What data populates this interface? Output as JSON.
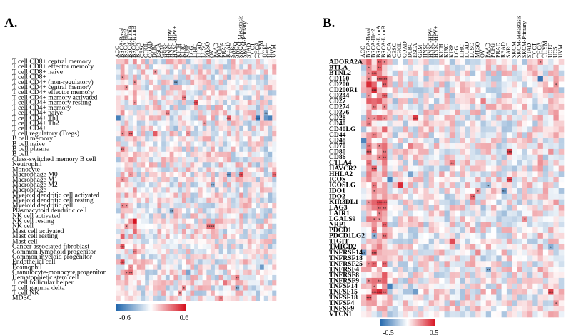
{
  "panels": [
    {
      "letter": "A.",
      "columns": [
        "ACC",
        "BRCA-Basal",
        "BRCA-Her2",
        "BRCA-LumA",
        "BRCA-LumB",
        "BLCA",
        "CESC",
        "CHOL",
        "COAD",
        "DLBC",
        "ESCA",
        "GBM",
        "HNSC",
        "HNSC-HPV-",
        "HNSC-HPV+",
        "KICH",
        "KIRC",
        "KIRP",
        "LGG",
        "LIHC",
        "LUAD",
        "LUSC",
        "MESO",
        "OV",
        "PAAD",
        "PCPG",
        "PRAD",
        "READ",
        "SARC",
        "SKCM",
        "SKCM-Metastasis",
        "SKCM-Primary",
        "STAD",
        "TGCT",
        "THCA",
        "THYM",
        "UCEC",
        "UCS",
        "UVM"
      ],
      "rows": [
        "T cell CD8+ central memory",
        "T cell CD8+ effector memory",
        "T cell CD8+ naive",
        "T cell CD8+",
        "T cell CD4+ (non-regulatory)",
        "T cell CD4+ central memory",
        "T cell CD4+ effector memory",
        "T cell CD4+ memory activated",
        "T cell CD4+ memory resting",
        "T cell CD4+ memory",
        "T cell CD4+ naive",
        "T cell CD4+ Th1",
        "T cell CD4+ Th2",
        "T cell CD4+",
        "T cell regulatory (Tregs)",
        "B cell memory",
        "B cell naive",
        "B cell plasma",
        "B cell",
        "Class-switched memory B cell",
        "Neutrophil",
        "Monocyte",
        "Macrophage M0",
        "Macrophage M1",
        "Macrophage M2",
        "Macrophage",
        "Myeloid dendritic cell activated",
        "Myeloid dendritic cell resting",
        "Myeloid dendritic cell",
        "Plasmacytoid dendritic cell",
        "NK cell activated",
        "NK cell resting",
        "NK cell",
        "Mast cell activated",
        "Mast cell resting",
        "Mast cell",
        "Cancer associated fibroblast",
        "Common lymphoid progenitor",
        "Common myeloid progenitor",
        "Endothelial cell",
        "Eosinophil",
        "Granulocyte-monocyte progenitor",
        "Hematopoietic stem cell",
        "T cell follicular helper",
        "T cell gamma delta",
        "T cell NK",
        "MDSC"
      ],
      "colorbar": {
        "min_label": "-0.6",
        "max_label": "0.6",
        "min": -0.6,
        "max": 0.6
      }
    },
    {
      "letter": "B.",
      "columns": [
        "ACC",
        "BRCA-Basal",
        "BRCA-Her2",
        "BRCA-LumA",
        "BRCA-LumB",
        "BLCA",
        "CESC",
        "CHOL",
        "COAD",
        "DLBC",
        "ESCA",
        "GBM",
        "HNSC",
        "HNSC-HPV-",
        "HNSC-HPV+",
        "KICH",
        "KIRC",
        "KIRP",
        "LGG",
        "LIHC",
        "LUAD",
        "LUSC",
        "MESO",
        "OV",
        "PAAD",
        "PCPG",
        "PRAD",
        "READ",
        "SARC",
        "SKCM",
        "SKCM-Metastasis",
        "SKCM-Primary",
        "STAD",
        "TGCT",
        "THCA",
        "THYM",
        "UCEC",
        "UCS",
        "UVM"
      ],
      "rows": [
        "ADORA2A",
        "BTLA",
        "BTNL2",
        "CD160",
        "CD200",
        "CD200R1",
        "CD244",
        "CD27",
        "CD274",
        "CD276",
        "CD28",
        "CD40",
        "CD40LG",
        "CD44",
        "CD48",
        "CD70",
        "CD80",
        "CD86",
        "CTLA4",
        "HAVCR2",
        "HHLA2",
        "ICOS",
        "ICOSLG",
        "IDO1",
        "IDO2",
        "KIR3DL1",
        "LAG3",
        "LAIR1",
        "LGALS9",
        "NRP1",
        "PDCD1",
        "PDCD1LG2",
        "TIGIT",
        "TMIGD2",
        "TNFRSF14",
        "TNFRSF18",
        "TNFRSF25",
        "TNFRSF4",
        "TNFRSF8",
        "TNFRSF9",
        "TNFSF14",
        "TNFSF15",
        "TNFSF18",
        "TNFSF4",
        "TNFSF9",
        "VTCN1"
      ],
      "colorbar": {
        "min_label": "-0.5",
        "max_label": "0.5",
        "min": -0.5,
        "max": 0.5
      }
    }
  ],
  "colors": {
    "negative": "#2166ac",
    "zero": "#ffffff",
    "positive": "#d6111e"
  },
  "chart_data": [
    {
      "type": "heatmap",
      "title": "",
      "value_range": [
        -0.6,
        0.6
      ],
      "note_values": "correlation coefficients per (row, column) cell estimated from colour; significance stars shown as '*' marks",
      "strong_cells": [
        {
          "row": "T cell CD4+ Th1",
          "column": "ACC",
          "value": -0.5
        },
        {
          "row": "T cell CD4+ Th1",
          "column": "THCA",
          "value": -0.55
        },
        {
          "row": "T cell CD4+ Th1",
          "column": "UCS",
          "value": -0.5
        },
        {
          "row": "Cancer associated fibroblast",
          "column": "BRCA-Basal",
          "value": 0.45
        },
        {
          "row": "T cell regulatory (Tregs)",
          "column": "BRCA-LumA",
          "value": 0.4
        },
        {
          "row": "Mast cell resting",
          "column": "BRCA-Basal",
          "value": 0.4
        },
        {
          "row": "Common lymphoid progenitor",
          "column": "BRCA-LumB",
          "value": 0.35
        }
      ]
    },
    {
      "type": "heatmap",
      "title": "",
      "value_range": [
        -0.5,
        0.5
      ],
      "strong_cells": [
        {
          "row": "CD200",
          "column": "BRCA-Basal",
          "value": 0.45
        },
        {
          "row": "CD200R1",
          "column": "BRCA-Her2",
          "value": 0.45
        },
        {
          "row": "TNFSF15",
          "column": "BRCA-LumA",
          "value": 0.45
        },
        {
          "row": "CD160",
          "column": "THCA",
          "value": -0.45
        },
        {
          "row": "TNFSF15",
          "column": "UCEC",
          "value": 0.4
        },
        {
          "row": "CD48",
          "column": "ACC",
          "value": -0.4
        }
      ]
    }
  ]
}
